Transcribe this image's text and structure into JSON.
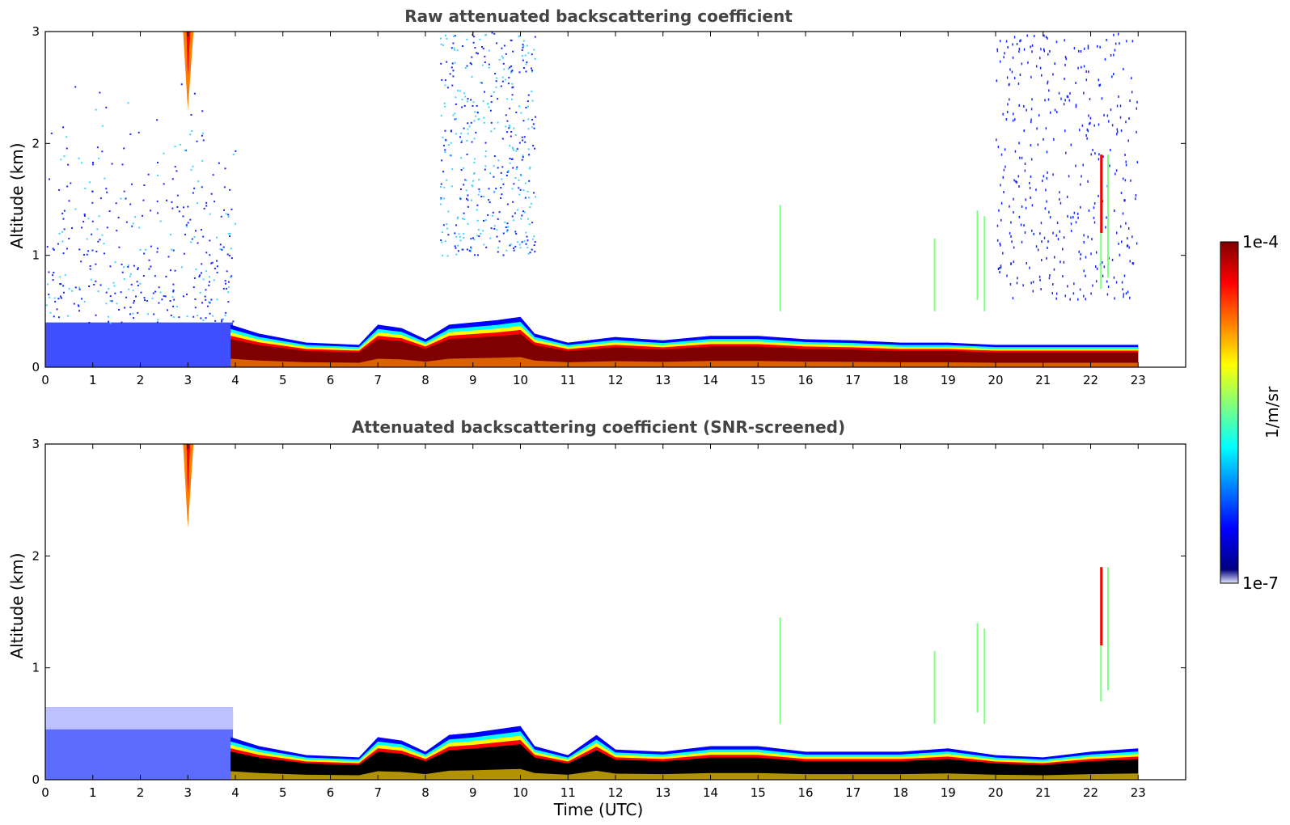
{
  "colors": {
    "jet": [
      "#00007f",
      "#0000ff",
      "#007fff",
      "#00ffff",
      "#7fff7f",
      "#ffff00",
      "#ff7f00",
      "#ff0000",
      "#7f0000"
    ],
    "low_fade": "#e6e6ff",
    "core": "#7f0000",
    "core_dark": "#000000"
  },
  "chart_data": [
    {
      "type": "heatmap",
      "title": "Raw attenuated backscattering coefficient",
      "xlabel": "",
      "ylabel": "Altitude (km)",
      "xlim": [
        0,
        24
      ],
      "ylim": [
        0,
        3
      ],
      "xticks": [
        "0",
        "1",
        "2",
        "3",
        "4",
        "5",
        "6",
        "7",
        "8",
        "9",
        "10",
        "11",
        "12",
        "13",
        "14",
        "15",
        "16",
        "17",
        "18",
        "19",
        "20",
        "21",
        "22",
        "23"
      ],
      "yticks": [
        "0",
        "1",
        "2",
        "3"
      ],
      "data_end_time": 23,
      "boundary_layer_top_km": [
        [
          3.9,
          0.38
        ],
        [
          4.5,
          0.3
        ],
        [
          5.5,
          0.22
        ],
        [
          6.6,
          0.2
        ],
        [
          7.0,
          0.38
        ],
        [
          7.5,
          0.35
        ],
        [
          8.0,
          0.25
        ],
        [
          8.5,
          0.38
        ],
        [
          9.0,
          0.4
        ],
        [
          9.5,
          0.42
        ],
        [
          10.0,
          0.45
        ],
        [
          10.3,
          0.3
        ],
        [
          11.0,
          0.22
        ],
        [
          12.0,
          0.27
        ],
        [
          13.0,
          0.24
        ],
        [
          14.0,
          0.28
        ],
        [
          15.0,
          0.28
        ],
        [
          16.0,
          0.25
        ],
        [
          17.0,
          0.24
        ],
        [
          18.0,
          0.22
        ],
        [
          19.0,
          0.22
        ],
        [
          20.0,
          0.2
        ],
        [
          21.0,
          0.2
        ],
        [
          22.0,
          0.2
        ],
        [
          23.0,
          0.2
        ]
      ],
      "colorbar": {
        "min_label": "1e-7",
        "max_label": "1e-4",
        "label": "1/m/sr",
        "scale": "log"
      }
    },
    {
      "type": "heatmap",
      "title": "Attenuated backscattering coefficient (SNR-screened)",
      "xlabel": "Time (UTC)",
      "ylabel": "Altitude (km)",
      "xlim": [
        0,
        24
      ],
      "ylim": [
        0,
        3
      ],
      "xticks": [
        "0",
        "1",
        "2",
        "3",
        "4",
        "5",
        "6",
        "7",
        "8",
        "9",
        "10",
        "11",
        "12",
        "13",
        "14",
        "15",
        "16",
        "17",
        "18",
        "19",
        "20",
        "21",
        "22",
        "23"
      ],
      "yticks": [
        "0",
        "1",
        "2",
        "3"
      ],
      "data_end_time": 23,
      "boundary_layer_top_km": [
        [
          3.9,
          0.38
        ],
        [
          4.5,
          0.3
        ],
        [
          5.5,
          0.22
        ],
        [
          6.6,
          0.2
        ],
        [
          7.0,
          0.38
        ],
        [
          7.5,
          0.35
        ],
        [
          8.0,
          0.25
        ],
        [
          8.5,
          0.4
        ],
        [
          9.0,
          0.42
        ],
        [
          9.5,
          0.45
        ],
        [
          10.0,
          0.48
        ],
        [
          10.3,
          0.3
        ],
        [
          11.0,
          0.22
        ],
        [
          11.6,
          0.4
        ],
        [
          12.0,
          0.27
        ],
        [
          13.0,
          0.25
        ],
        [
          14.0,
          0.3
        ],
        [
          15.0,
          0.3
        ],
        [
          16.0,
          0.25
        ],
        [
          17.0,
          0.25
        ],
        [
          18.0,
          0.25
        ],
        [
          19.0,
          0.28
        ],
        [
          20.0,
          0.22
        ],
        [
          21.0,
          0.2
        ],
        [
          22.0,
          0.25
        ],
        [
          23.0,
          0.28
        ]
      ],
      "colorbar": {
        "min_label": "1e-7",
        "max_label": "1e-4",
        "label": "1/m/sr",
        "scale": "log"
      }
    }
  ]
}
